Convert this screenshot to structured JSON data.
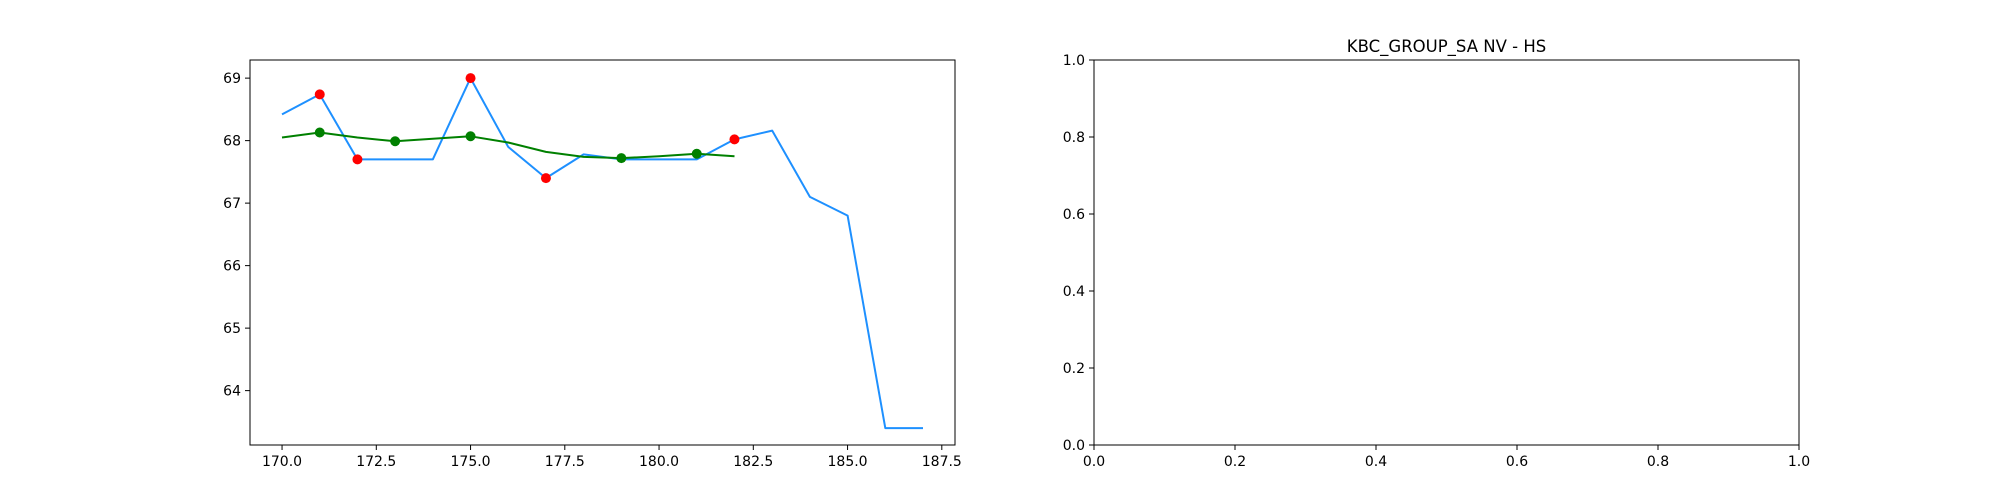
{
  "chart_data": [
    {
      "type": "line",
      "title": "",
      "xlabel": "",
      "ylabel": "",
      "xlim": [
        169.15,
        187.85
      ],
      "ylim": [
        63.13,
        69.29
      ],
      "xticks": [
        170.0,
        172.5,
        175.0,
        177.5,
        180.0,
        182.5,
        185.0,
        187.5
      ],
      "xtick_labels": [
        "170.0",
        "172.5",
        "175.0",
        "177.5",
        "180.0",
        "182.5",
        "185.0",
        "187.5"
      ],
      "yticks": [
        64,
        65,
        66,
        67,
        68,
        69
      ],
      "ytick_labels": [
        "64",
        "65",
        "66",
        "67",
        "68",
        "69"
      ],
      "grid": false,
      "series": [
        {
          "kind": "line",
          "color": "#1e90ff",
          "x": [
            170,
            171,
            172,
            173,
            174,
            175,
            176,
            177,
            178,
            179,
            180,
            181,
            182,
            183,
            184,
            185,
            186,
            187
          ],
          "y": [
            68.42,
            68.74,
            67.7,
            67.7,
            67.7,
            69.0,
            67.9,
            67.4,
            67.78,
            67.7,
            67.7,
            67.7,
            68.02,
            68.16,
            67.1,
            66.8,
            63.4,
            63.4
          ]
        },
        {
          "kind": "line",
          "color": "#008000",
          "x": [
            170,
            171,
            172,
            173,
            174,
            175,
            176,
            177,
            178,
            179,
            180,
            181,
            182
          ],
          "y": [
            68.05,
            68.13,
            68.05,
            67.99,
            68.03,
            68.07,
            67.97,
            67.82,
            67.74,
            67.72,
            67.75,
            67.79,
            67.75
          ]
        },
        {
          "kind": "scatter",
          "color": "#ff0000",
          "x": [
            171,
            172,
            175,
            177,
            182
          ],
          "y": [
            68.74,
            67.7,
            69.0,
            67.4,
            68.02
          ]
        },
        {
          "kind": "scatter",
          "color": "#008000",
          "x": [
            171,
            173,
            175,
            179,
            181
          ],
          "y": [
            68.13,
            67.99,
            68.07,
            67.72,
            67.79
          ]
        }
      ]
    },
    {
      "type": "line",
      "title": "KBC_GROUP_SA NV - HS",
      "xlabel": "",
      "ylabel": "",
      "xlim": [
        0.0,
        1.0
      ],
      "ylim": [
        0.0,
        1.0
      ],
      "xticks": [
        0.0,
        0.2,
        0.4,
        0.6,
        0.8,
        1.0
      ],
      "xtick_labels": [
        "0.0",
        "0.2",
        "0.4",
        "0.6",
        "0.8",
        "1.0"
      ],
      "yticks": [
        0.0,
        0.2,
        0.4,
        0.6,
        0.8,
        1.0
      ],
      "ytick_labels": [
        "0.0",
        "0.2",
        "0.4",
        "0.6",
        "0.8",
        "1.0"
      ],
      "grid": false,
      "series": []
    }
  ]
}
